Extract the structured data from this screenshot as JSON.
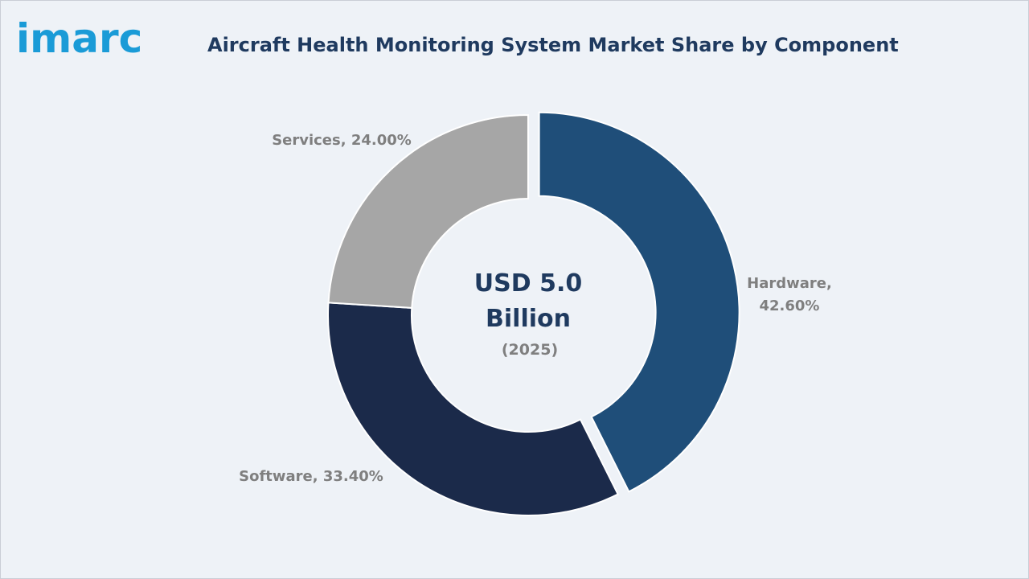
{
  "brand": {
    "logo_text": "imarc",
    "logo_color": "#1a9bd7"
  },
  "chart_data": {
    "type": "pie",
    "style": "donut",
    "title": "Aircraft Health Monitoring System Market Share by Component",
    "center_label": {
      "line1": "USD 5.0",
      "line2": "Billion",
      "line3": "(2025)"
    },
    "slices": [
      {
        "name": "Hardware",
        "value": 42.6,
        "label_line1": "Hardware,",
        "label_line2": "42.60%",
        "color": "#1f4e79",
        "exploded": true
      },
      {
        "name": "Software",
        "value": 33.4,
        "label": "Software, 33.40%",
        "color": "#1b2a4a",
        "exploded": false
      },
      {
        "name": "Services",
        "value": 24.0,
        "label": "Services, 24.00%",
        "color": "#a6a6a6",
        "exploded": false
      }
    ]
  }
}
